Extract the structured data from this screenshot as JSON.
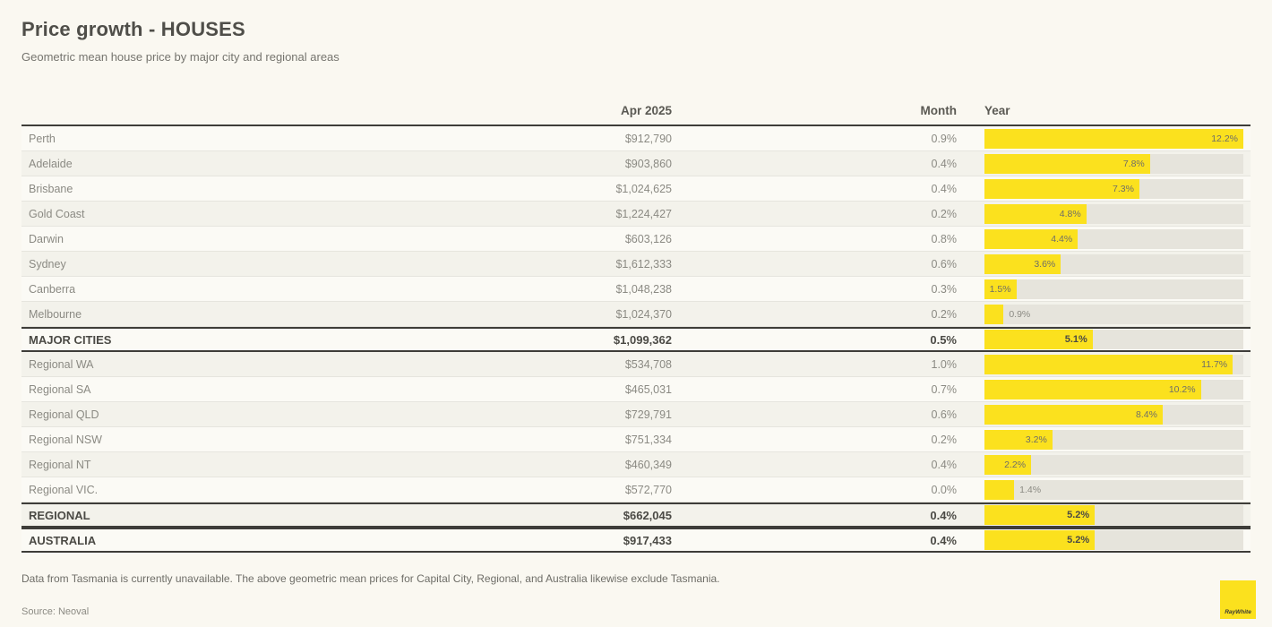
{
  "header": {
    "title": "Price growth - HOUSES",
    "subtitle": "Geometric mean house price by major city and regional areas"
  },
  "table_headers": {
    "value": "Apr 2025",
    "month": "Month",
    "year": "Year"
  },
  "chart_data": {
    "type": "bar",
    "orientation": "horizontal",
    "title": "Price growth - HOUSES",
    "subtitle": "Geometric mean house price by major city and regional areas",
    "columns": [
      "",
      "Apr 2025",
      "Month",
      "Year"
    ],
    "bar_axis_max": 12.2,
    "legend": "none",
    "rows": [
      {
        "name": "Perth",
        "price": "$912,790",
        "month": "0.9%",
        "year_pct": 12.2,
        "year_label": "12.2%",
        "summary": false
      },
      {
        "name": "Adelaide",
        "price": "$903,860",
        "month": "0.4%",
        "year_pct": 7.8,
        "year_label": "7.8%",
        "summary": false
      },
      {
        "name": "Brisbane",
        "price": "$1,024,625",
        "month": "0.4%",
        "year_pct": 7.3,
        "year_label": "7.3%",
        "summary": false
      },
      {
        "name": "Gold Coast",
        "price": "$1,224,427",
        "month": "0.2%",
        "year_pct": 4.8,
        "year_label": "4.8%",
        "summary": false
      },
      {
        "name": "Darwin",
        "price": "$603,126",
        "month": "0.8%",
        "year_pct": 4.4,
        "year_label": "4.4%",
        "summary": false
      },
      {
        "name": "Sydney",
        "price": "$1,612,333",
        "month": "0.6%",
        "year_pct": 3.6,
        "year_label": "3.6%",
        "summary": false
      },
      {
        "name": "Canberra",
        "price": "$1,048,238",
        "month": "0.3%",
        "year_pct": 1.5,
        "year_label": "1.5%",
        "summary": false
      },
      {
        "name": "Melbourne",
        "price": "$1,024,370",
        "month": "0.2%",
        "year_pct": 0.9,
        "year_label": "0.9%",
        "summary": false
      },
      {
        "name": "MAJOR CITIES",
        "price": "$1,099,362",
        "month": "0.5%",
        "year_pct": 5.1,
        "year_label": "5.1%",
        "summary": true
      },
      {
        "name": "Regional WA",
        "price": "$534,708",
        "month": "1.0%",
        "year_pct": 11.7,
        "year_label": "11.7%",
        "summary": false
      },
      {
        "name": "Regional SA",
        "price": "$465,031",
        "month": "0.7%",
        "year_pct": 10.2,
        "year_label": "10.2%",
        "summary": false
      },
      {
        "name": "Regional QLD",
        "price": "$729,791",
        "month": "0.6%",
        "year_pct": 8.4,
        "year_label": "8.4%",
        "summary": false
      },
      {
        "name": "Regional NSW",
        "price": "$751,334",
        "month": "0.2%",
        "year_pct": 3.2,
        "year_label": "3.2%",
        "summary": false
      },
      {
        "name": "Regional NT",
        "price": "$460,349",
        "month": "0.4%",
        "year_pct": 2.2,
        "year_label": "2.2%",
        "summary": false
      },
      {
        "name": "Regional VIC.",
        "price": "$572,770",
        "month": "0.0%",
        "year_pct": 1.4,
        "year_label": "1.4%",
        "summary": false
      },
      {
        "name": "REGIONAL",
        "price": "$662,045",
        "month": "0.4%",
        "year_pct": 5.2,
        "year_label": "5.2%",
        "summary": true
      },
      {
        "name": "AUSTRALIA",
        "price": "$917,433",
        "month": "0.4%",
        "year_pct": 5.2,
        "year_label": "5.2%",
        "summary": true
      }
    ]
  },
  "footer": {
    "note": "Data from Tasmania is currently unavailable. The above geometric mean prices for Capital City, Regional, and Australia likewise exclude Tasmania.",
    "source": "Source: Neoval",
    "logo_text": "RayWhite"
  },
  "colors": {
    "accent_yellow": "#FBE11E",
    "bar_track": "#E6E4DC",
    "dark_rule": "#3E3D39",
    "background": "#FAF8F1"
  }
}
